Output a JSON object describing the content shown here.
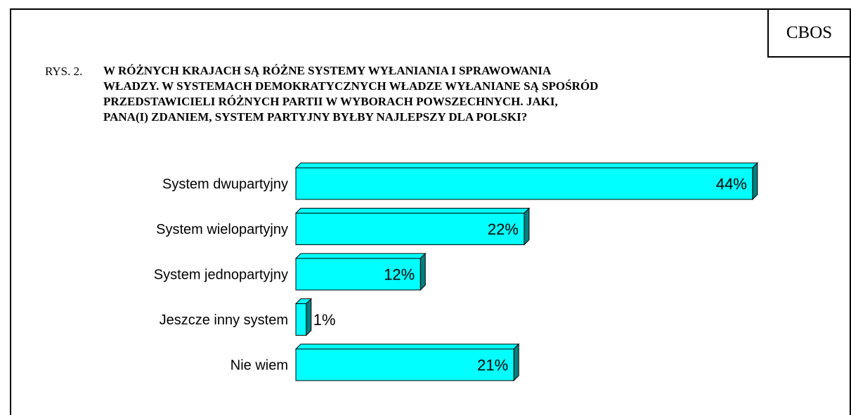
{
  "header": {
    "logo": "CBOS",
    "figure_label": "RYS. 2.",
    "title_lines": [
      "W RÓŻNYCH KRAJACH SĄ RÓŻNE SYSTEMY WYŁANIANIA I SPRAWOWANIA",
      "WŁADZY. W SYSTEMACH DEMOKRATYCZNYCH WŁADZE WYŁANIANE SĄ SPOŚRÓD",
      "PRZEDSTAWICIELI RÓŻNYCH PARTII W WYBORACH POWSZECHNYCH. JAKI,",
      "PANA(I) ZDANIEM, SYSTEM PARTYJNY BYŁBY NAJLEPSZY DLA POLSKI?"
    ]
  },
  "chart_data": {
    "type": "bar",
    "orientation": "horizontal",
    "categories": [
      "System dwupartyjny",
      "System wielopartyjny",
      "System jednopartyjny",
      "Jeszcze inny system",
      "Nie wiem"
    ],
    "values": [
      44,
      22,
      12,
      1,
      21
    ],
    "data_labels": [
      "44%",
      "22%",
      "12%",
      "1%",
      "21%"
    ],
    "unit": "%",
    "bar_color": "#00ffff",
    "bar_side_color": "#008080",
    "three_d": true,
    "grid": false,
    "legend": "none"
  }
}
